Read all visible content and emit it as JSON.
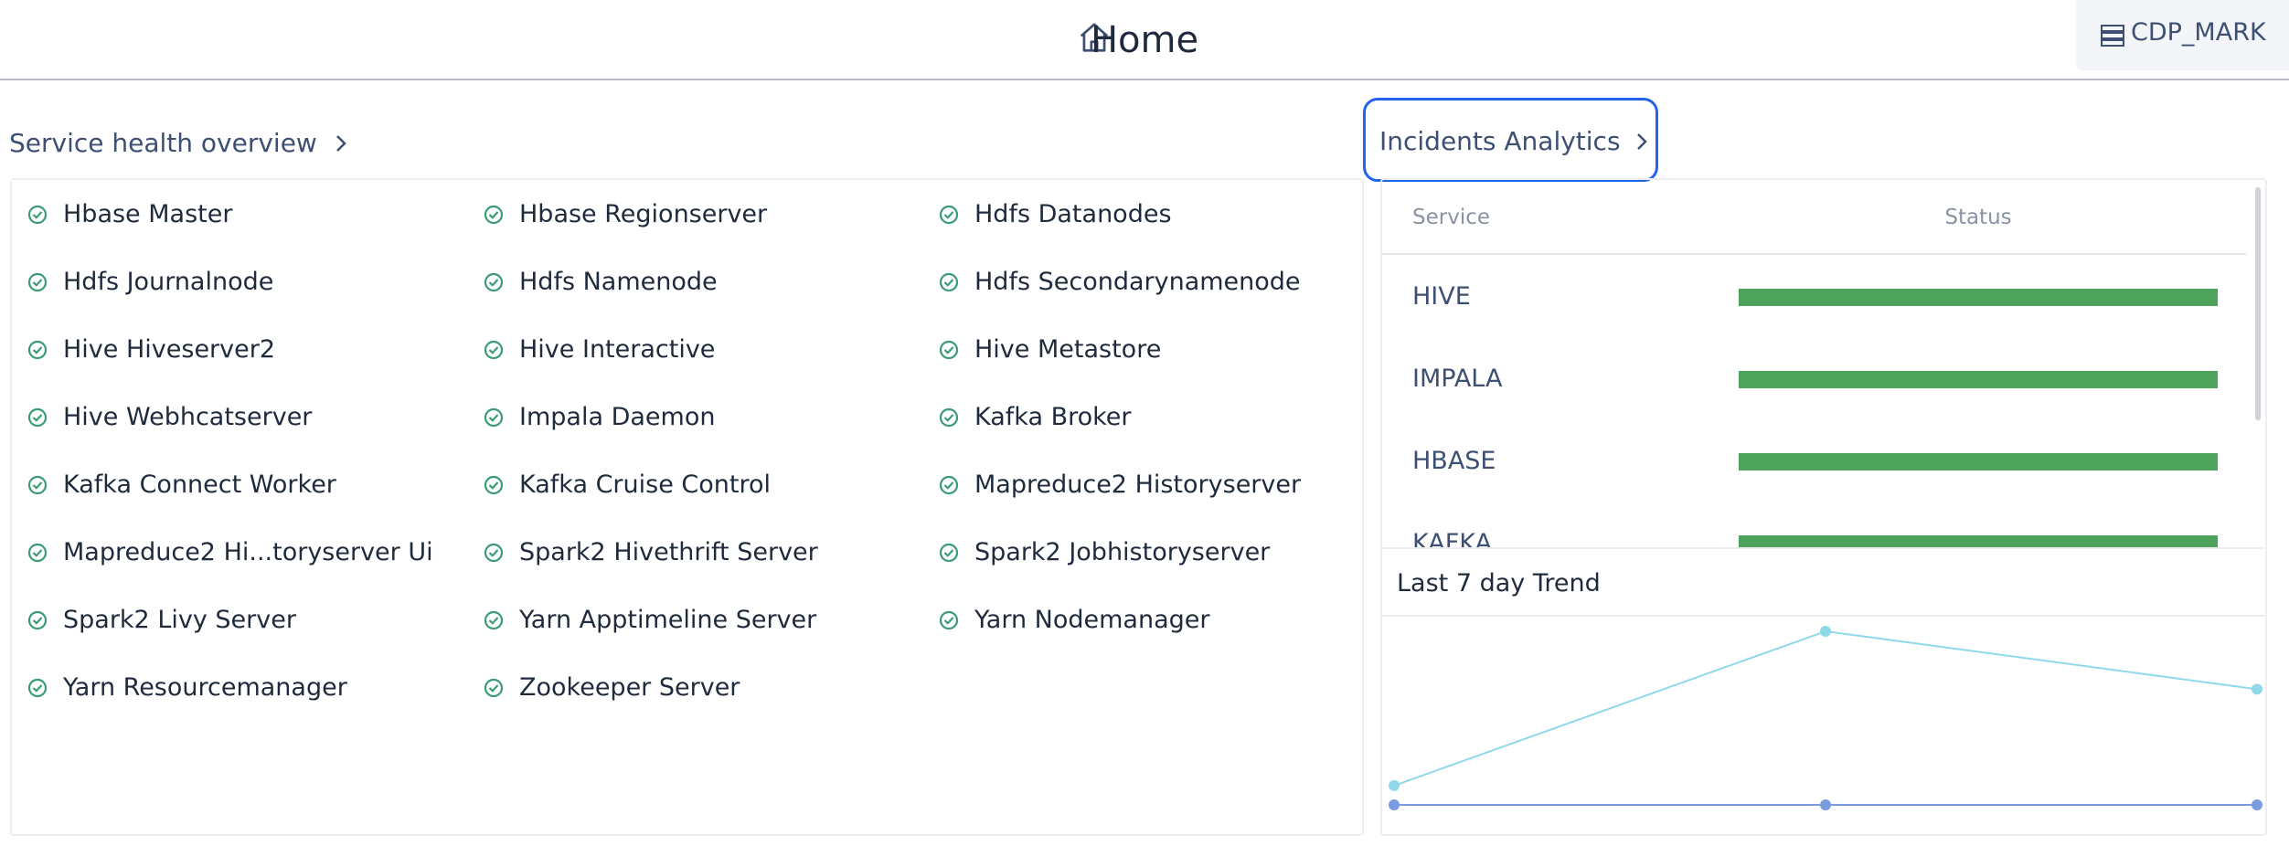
{
  "header": {
    "title": "Home",
    "user": "CDP_MARK"
  },
  "service_health": {
    "title": "Service health overview",
    "services": [
      "Hbase Master",
      "Hbase Regionserver",
      "Hdfs Datanodes",
      "Hdfs Journalnode",
      "Hdfs Namenode",
      "Hdfs Secondarynamenode",
      "Hive Hiveserver2",
      "Hive Interactive",
      "Hive Metastore",
      "Hive Webhcatserver",
      "Impala Daemon",
      "Kafka Broker",
      "Kafka Connect Worker",
      "Kafka Cruise Control",
      "Mapreduce2 Historyserver",
      "Mapreduce2 Hi...toryserver Ui",
      "Spark2 Hivethrift Server",
      "Spark2 Jobhistoryserver",
      "Spark2 Livy Server",
      "Yarn Apptimeline Server",
      "Yarn Nodemanager",
      "Yarn Resourcemanager",
      "Zookeeper Server"
    ]
  },
  "incidents": {
    "title": "Incidents Analytics",
    "columns": [
      "Service",
      "Status"
    ],
    "rows": [
      "HIVE",
      "IMPALA",
      "HBASE",
      "KAFKA"
    ],
    "trend_title": "Last 7 day Trend",
    "trend": {
      "type": "line",
      "series": [
        {
          "color": "#8fd9ea",
          "values": [
            1,
            9,
            6
          ]
        },
        {
          "color": "#7b9be0",
          "values": [
            0,
            0,
            0
          ]
        }
      ]
    }
  }
}
